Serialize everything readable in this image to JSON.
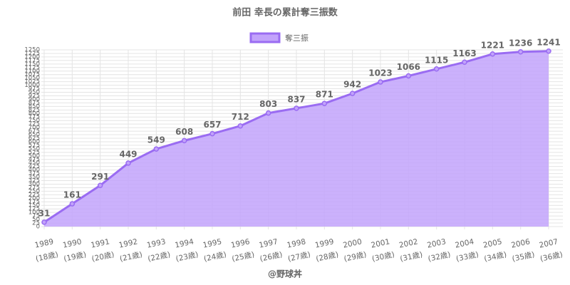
{
  "chart_data": {
    "type": "line",
    "title": "前田 幸長の累計奪三振数",
    "caption": "@野球丼",
    "categories": [
      [
        "1989",
        "(18歳)"
      ],
      [
        "1990",
        "(19歳)"
      ],
      [
        "1991",
        "(20歳)"
      ],
      [
        "1992",
        "(21歳)"
      ],
      [
        "1993",
        "(22歳)"
      ],
      [
        "1994",
        "(23歳)"
      ],
      [
        "1995",
        "(24歳)"
      ],
      [
        "1996",
        "(25歳)"
      ],
      [
        "1997",
        "(26歳)"
      ],
      [
        "1998",
        "(27歳)"
      ],
      [
        "1999",
        "(28歳)"
      ],
      [
        "2000",
        "(29歳)"
      ],
      [
        "2001",
        "(30歳)"
      ],
      [
        "2002",
        "(31歳)"
      ],
      [
        "2003",
        "(32歳)"
      ],
      [
        "2004",
        "(33歳)"
      ],
      [
        "2005",
        "(34歳)"
      ],
      [
        "2006",
        "(35歳)"
      ],
      [
        "2007",
        "(36歳)"
      ]
    ],
    "series": [
      {
        "name": "奪三振",
        "color": "#9a6cf2",
        "fill": "#c2a3fb",
        "values": [
          31,
          161,
          291,
          449,
          549,
          608,
          657,
          712,
          803,
          837,
          871,
          942,
          1023,
          1066,
          1115,
          1163,
          1221,
          1236,
          1241
        ]
      }
    ],
    "ylim": [
      0,
      1250
    ],
    "yticks": [
      0,
      25,
      50,
      75,
      100,
      125,
      150,
      175,
      200,
      225,
      250,
      275,
      300,
      325,
      350,
      375,
      400,
      425,
      450,
      475,
      500,
      525,
      550,
      575,
      600,
      625,
      650,
      675,
      700,
      725,
      750,
      775,
      800,
      825,
      850,
      875,
      900,
      925,
      950,
      975,
      1000,
      1025,
      1050,
      1075,
      1100,
      1125,
      1150,
      1175,
      1200,
      1225,
      1250
    ],
    "area": true,
    "grid": true,
    "legend": "top",
    "data_labels": true
  }
}
